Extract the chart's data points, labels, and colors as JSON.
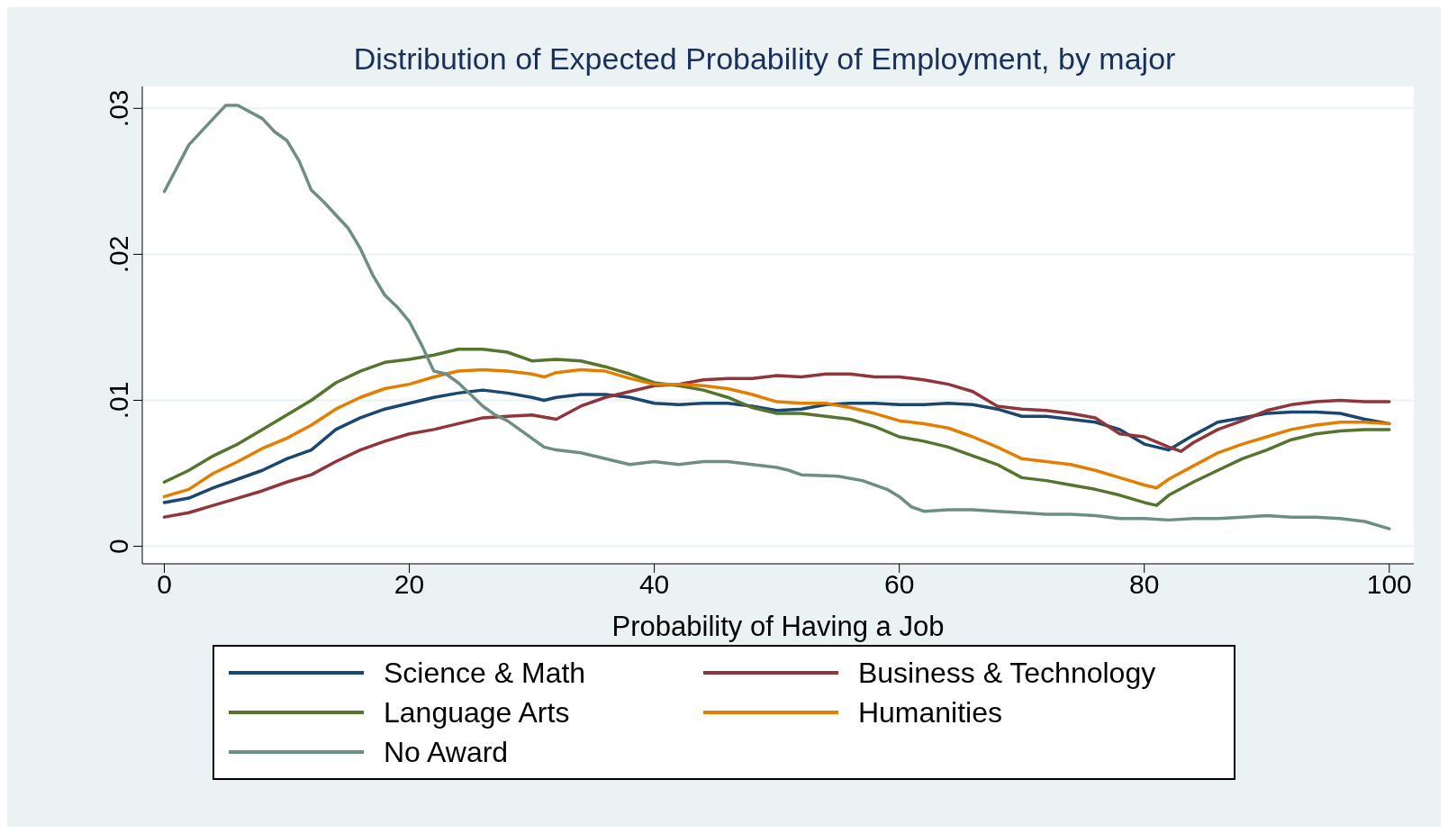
{
  "chart_data": {
    "type": "line",
    "title": "Distribution of Expected Probability of Employment, by major",
    "xlabel": "Probability of Having a Job",
    "xlim": [
      -1.8,
      102
    ],
    "xticks": [
      0,
      20,
      40,
      60,
      80,
      100
    ],
    "ylim": [
      -0.0012,
      0.0315
    ],
    "yticks": [
      {
        "value": 0,
        "label": "0"
      },
      {
        "value": 0.01,
        "label": ".01"
      },
      {
        "value": 0.02,
        "label": ".02"
      },
      {
        "value": 0.03,
        "label": ".03"
      }
    ],
    "grid": "y",
    "legend": "bottom",
    "marker": "none",
    "line_style": "solid",
    "series": [
      {
        "name": "Science & Math",
        "color": "#1a476f",
        "x": [
          0,
          2,
          4,
          6,
          8,
          10,
          12,
          14,
          16,
          18,
          20,
          22,
          24,
          26,
          28,
          30,
          31,
          32,
          34,
          36,
          38,
          40,
          42,
          44,
          46,
          48,
          50,
          52,
          54,
          56,
          58,
          60,
          62,
          64,
          66,
          68,
          70,
          72,
          74,
          76,
          78,
          80,
          81,
          82,
          84,
          86,
          88,
          90,
          92,
          94,
          96,
          98,
          100
        ],
        "values": [
          0.003,
          0.0033,
          0.004,
          0.0046,
          0.0052,
          0.006,
          0.0066,
          0.008,
          0.0088,
          0.0094,
          0.0098,
          0.0102,
          0.0105,
          0.0107,
          0.0105,
          0.0102,
          0.01,
          0.0102,
          0.0104,
          0.0104,
          0.0102,
          0.0098,
          0.0097,
          0.0098,
          0.0098,
          0.0096,
          0.0093,
          0.0094,
          0.0097,
          0.0098,
          0.0098,
          0.0097,
          0.0097,
          0.0098,
          0.0097,
          0.0094,
          0.0089,
          0.0089,
          0.0087,
          0.0085,
          0.008,
          0.007,
          0.0068,
          0.0066,
          0.0076,
          0.0085,
          0.0088,
          0.0091,
          0.0092,
          0.0092,
          0.0091,
          0.0087,
          0.0084
        ]
      },
      {
        "name": "Business & Technology",
        "color": "#90353b",
        "x": [
          0,
          2,
          4,
          6,
          8,
          10,
          12,
          14,
          16,
          18,
          20,
          22,
          24,
          26,
          28,
          30,
          32,
          34,
          36,
          38,
          40,
          42,
          44,
          46,
          48,
          50,
          52,
          54,
          56,
          58,
          60,
          62,
          64,
          66,
          68,
          70,
          72,
          74,
          76,
          78,
          80,
          82,
          83,
          84,
          86,
          88,
          90,
          92,
          94,
          96,
          98,
          100
        ],
        "values": [
          0.002,
          0.0023,
          0.0028,
          0.0033,
          0.0038,
          0.0044,
          0.0049,
          0.0058,
          0.0066,
          0.0072,
          0.0077,
          0.008,
          0.0084,
          0.0088,
          0.0089,
          0.009,
          0.0087,
          0.0096,
          0.0102,
          0.0106,
          0.011,
          0.0111,
          0.0114,
          0.0115,
          0.0115,
          0.0117,
          0.0116,
          0.0118,
          0.0118,
          0.0116,
          0.0116,
          0.0114,
          0.0111,
          0.0106,
          0.0096,
          0.0094,
          0.0093,
          0.0091,
          0.0088,
          0.0077,
          0.0075,
          0.0068,
          0.0065,
          0.0071,
          0.008,
          0.0086,
          0.0093,
          0.0097,
          0.0099,
          0.01,
          0.0099,
          0.0099
        ]
      },
      {
        "name": "Language Arts",
        "color": "#55752f",
        "x": [
          0,
          2,
          4,
          6,
          8,
          10,
          12,
          14,
          16,
          18,
          20,
          22,
          24,
          26,
          28,
          30,
          32,
          34,
          36,
          38,
          40,
          42,
          44,
          46,
          48,
          50,
          52,
          54,
          56,
          58,
          60,
          62,
          64,
          66,
          68,
          70,
          72,
          74,
          76,
          78,
          80,
          81,
          82,
          84,
          86,
          88,
          90,
          92,
          94,
          96,
          98,
          100
        ],
        "values": [
          0.0044,
          0.0052,
          0.0062,
          0.007,
          0.008,
          0.009,
          0.01,
          0.0112,
          0.012,
          0.0126,
          0.0128,
          0.0131,
          0.0135,
          0.0135,
          0.0133,
          0.0127,
          0.0128,
          0.0127,
          0.0123,
          0.0118,
          0.0112,
          0.011,
          0.0107,
          0.0102,
          0.0095,
          0.0091,
          0.0091,
          0.0089,
          0.0087,
          0.0082,
          0.0075,
          0.0072,
          0.0068,
          0.0062,
          0.0056,
          0.0047,
          0.0045,
          0.0042,
          0.0039,
          0.0035,
          0.003,
          0.0028,
          0.0035,
          0.0044,
          0.0052,
          0.006,
          0.0066,
          0.0073,
          0.0077,
          0.0079,
          0.008,
          0.008
        ]
      },
      {
        "name": "Humanities",
        "color": "#e37e00",
        "x": [
          0,
          2,
          4,
          6,
          8,
          10,
          12,
          14,
          16,
          18,
          20,
          22,
          24,
          26,
          28,
          30,
          31,
          32,
          34,
          36,
          38,
          40,
          42,
          44,
          46,
          48,
          50,
          52,
          54,
          56,
          58,
          60,
          62,
          64,
          66,
          68,
          70,
          72,
          74,
          76,
          78,
          80,
          81,
          82,
          84,
          86,
          88,
          90,
          92,
          94,
          96,
          98,
          100
        ],
        "values": [
          0.0034,
          0.0039,
          0.005,
          0.0058,
          0.0067,
          0.0074,
          0.0083,
          0.0094,
          0.0102,
          0.0108,
          0.0111,
          0.0116,
          0.012,
          0.0121,
          0.012,
          0.0118,
          0.0116,
          0.0119,
          0.0121,
          0.012,
          0.0115,
          0.0111,
          0.0111,
          0.011,
          0.0108,
          0.0104,
          0.0099,
          0.0098,
          0.0098,
          0.0095,
          0.0091,
          0.0086,
          0.0084,
          0.0081,
          0.0075,
          0.0068,
          0.006,
          0.0058,
          0.0056,
          0.0052,
          0.0047,
          0.0042,
          0.004,
          0.0046,
          0.0055,
          0.0064,
          0.007,
          0.0075,
          0.008,
          0.0083,
          0.0085,
          0.0085,
          0.0084
        ]
      },
      {
        "name": "No Award",
        "color": "#6e8e84",
        "x": [
          0,
          2,
          4,
          5,
          6,
          8,
          9,
          10,
          11,
          12,
          13,
          15,
          16,
          17,
          18,
          19,
          20,
          21,
          22,
          23,
          24,
          25,
          26,
          27,
          28,
          30,
          31,
          32,
          34,
          36,
          38,
          40,
          42,
          44,
          46,
          48,
          50,
          51,
          52,
          55,
          57,
          59,
          60,
          61,
          62,
          64,
          66,
          68,
          70,
          72,
          74,
          76,
          78,
          80,
          82,
          84,
          86,
          88,
          90,
          92,
          94,
          96,
          98,
          100
        ],
        "values": [
          0.0243,
          0.0275,
          0.0293,
          0.0302,
          0.0302,
          0.0293,
          0.0284,
          0.0278,
          0.0264,
          0.0244,
          0.0236,
          0.0218,
          0.0204,
          0.0186,
          0.0172,
          0.0164,
          0.0154,
          0.0138,
          0.012,
          0.0118,
          0.0112,
          0.0104,
          0.0096,
          0.009,
          0.0086,
          0.0074,
          0.0068,
          0.0066,
          0.0064,
          0.006,
          0.0056,
          0.0058,
          0.0056,
          0.0058,
          0.0058,
          0.0056,
          0.0054,
          0.0052,
          0.0049,
          0.0048,
          0.0045,
          0.0039,
          0.0034,
          0.0027,
          0.0024,
          0.0025,
          0.0025,
          0.0024,
          0.0023,
          0.0022,
          0.0022,
          0.0021,
          0.0019,
          0.0019,
          0.0018,
          0.0019,
          0.0019,
          0.002,
          0.0021,
          0.002,
          0.002,
          0.0019,
          0.0017,
          0.0012
        ]
      }
    ]
  }
}
